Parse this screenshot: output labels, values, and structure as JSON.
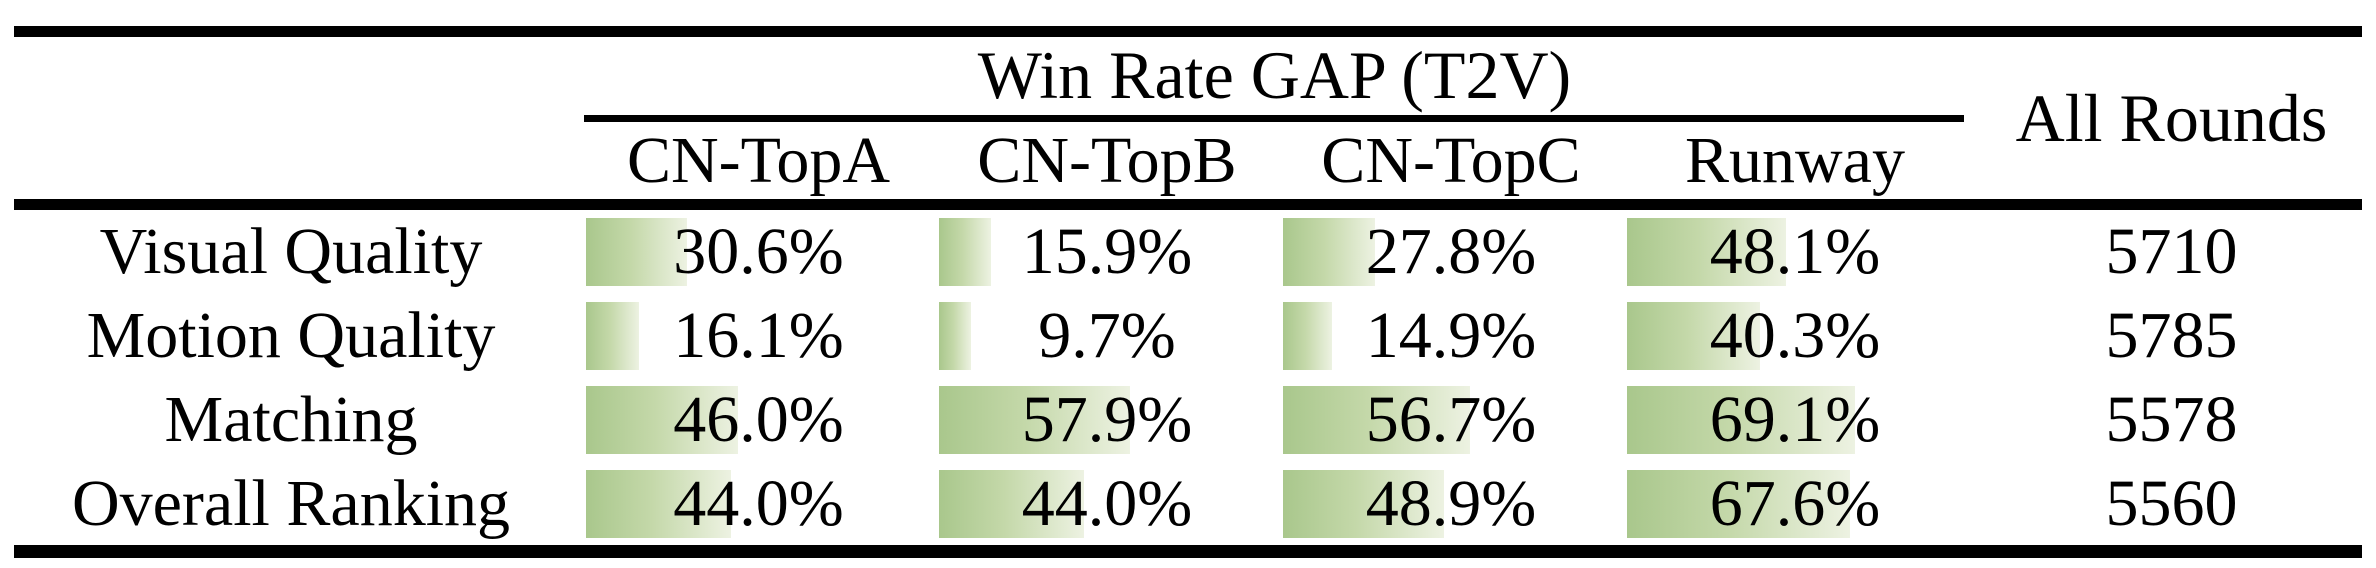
{
  "table": {
    "title": "Win Rate GAP (T2V)",
    "all_rounds_label": "All Rounds",
    "columns": [
      "CN-TopA",
      "CN-TopB",
      "CN-TopC",
      "Runway"
    ],
    "rows": [
      {
        "label": "Visual Quality",
        "cells": [
          {
            "text": "30.6%",
            "value": 30.6
          },
          {
            "text": "15.9%",
            "value": 15.9
          },
          {
            "text": "27.8%",
            "value": 27.8
          },
          {
            "text": "48.1%",
            "value": 48.1
          }
        ],
        "all_rounds": "5710"
      },
      {
        "label": "Motion Quality",
        "cells": [
          {
            "text": "16.1%",
            "value": 16.1
          },
          {
            "text": "9.7%",
            "value": 9.7
          },
          {
            "text": "14.9%",
            "value": 14.9
          },
          {
            "text": "40.3%",
            "value": 40.3
          }
        ],
        "all_rounds": "5785"
      },
      {
        "label": "Matching",
        "cells": [
          {
            "text": "46.0%",
            "value": 46.0
          },
          {
            "text": "57.9%",
            "value": 57.9
          },
          {
            "text": "56.7%",
            "value": 56.7
          },
          {
            "text": "69.1%",
            "value": 69.1
          }
        ],
        "all_rounds": "5578"
      },
      {
        "label": "Overall Ranking",
        "cells": [
          {
            "text": "44.0%",
            "value": 44.0
          },
          {
            "text": "44.0%",
            "value": 44.0
          },
          {
            "text": "48.9%",
            "value": 48.9
          },
          {
            "text": "67.6%",
            "value": 67.6
          }
        ],
        "all_rounds": "5560"
      }
    ],
    "colors": {
      "bar_gradient_start": "#a9c78c",
      "bar_gradient_end": "#edf2e2",
      "rule": "#000000",
      "background": "#ffffff",
      "text": "#000000"
    }
  },
  "chart_data": {
    "type": "table",
    "title": "Win Rate GAP (T2V)",
    "categories": [
      "Visual Quality",
      "Motion Quality",
      "Matching",
      "Overall Ranking"
    ],
    "series": [
      {
        "name": "CN-TopA",
        "values": [
          30.6,
          16.1,
          46.0,
          44.0
        ]
      },
      {
        "name": "CN-TopB",
        "values": [
          15.9,
          9.7,
          57.9,
          44.0
        ]
      },
      {
        "name": "CN-TopC",
        "values": [
          27.8,
          14.9,
          56.7,
          48.9
        ]
      },
      {
        "name": "Runway",
        "values": [
          48.1,
          40.3,
          69.1,
          67.6
        ]
      }
    ],
    "extra_column": {
      "name": "All Rounds",
      "values": [
        5710,
        5785,
        5578,
        5560
      ]
    },
    "unit": "%",
    "bar_scale_max": 100
  }
}
